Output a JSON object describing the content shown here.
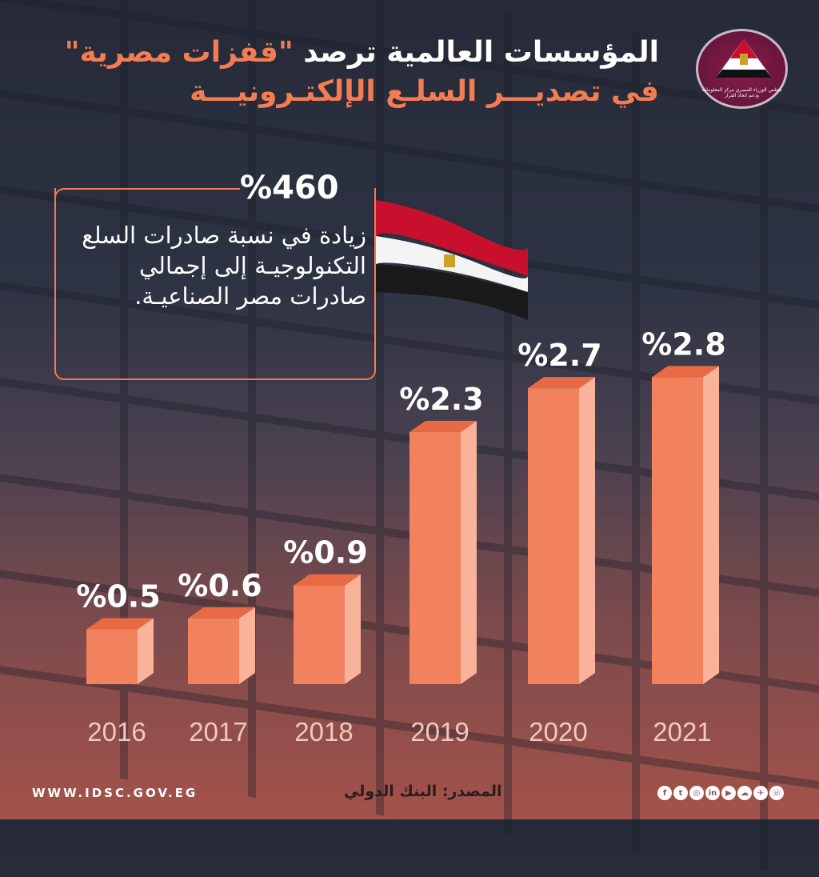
{
  "title": {
    "line1_prefix": "المؤسسات العالمية ترصد",
    "line1_highlight": "\"قفزات مصرية\"",
    "line2": "في تصديـــر السلـع الإلكتـرونيـــة"
  },
  "logo": {
    "text": "مجلس الوزراء المصري مركز المعلومات ودعم اتخاذ القرار"
  },
  "callout": {
    "value": "%460",
    "text": "زيادة في نسبة صادرات السلع التكنولوجيـة إلى إجمالي صادرات مصر الصناعيـة."
  },
  "colors": {
    "accent": "#f47c52",
    "bar_front": "#f2825e",
    "bar_side": "#f8b39a",
    "bar_top": "#e86a45"
  },
  "chart_data": {
    "type": "bar",
    "categories": [
      "2016",
      "2017",
      "2018",
      "2019",
      "2020",
      "2021"
    ],
    "values": [
      0.5,
      0.6,
      0.9,
      2.3,
      2.7,
      2.8
    ],
    "labels": [
      "%0.5",
      "%0.6",
      "%0.9",
      "%2.3",
      "%2.7",
      "%2.8"
    ],
    "unit": "%",
    "grid": false
  },
  "footer": {
    "website": "WWW.IDSC.GOV.EG",
    "source": "المصدر: البنك الدولي",
    "social_icons": [
      "facebook-icon",
      "twitter-icon",
      "instagram-icon",
      "linkedin-icon",
      "youtube-icon",
      "soundcloud-icon",
      "telegram-icon",
      "phone-icon"
    ],
    "social_glyphs": [
      "f",
      "t",
      "◎",
      "in",
      "▶",
      "☁",
      "✈",
      "☏"
    ]
  }
}
